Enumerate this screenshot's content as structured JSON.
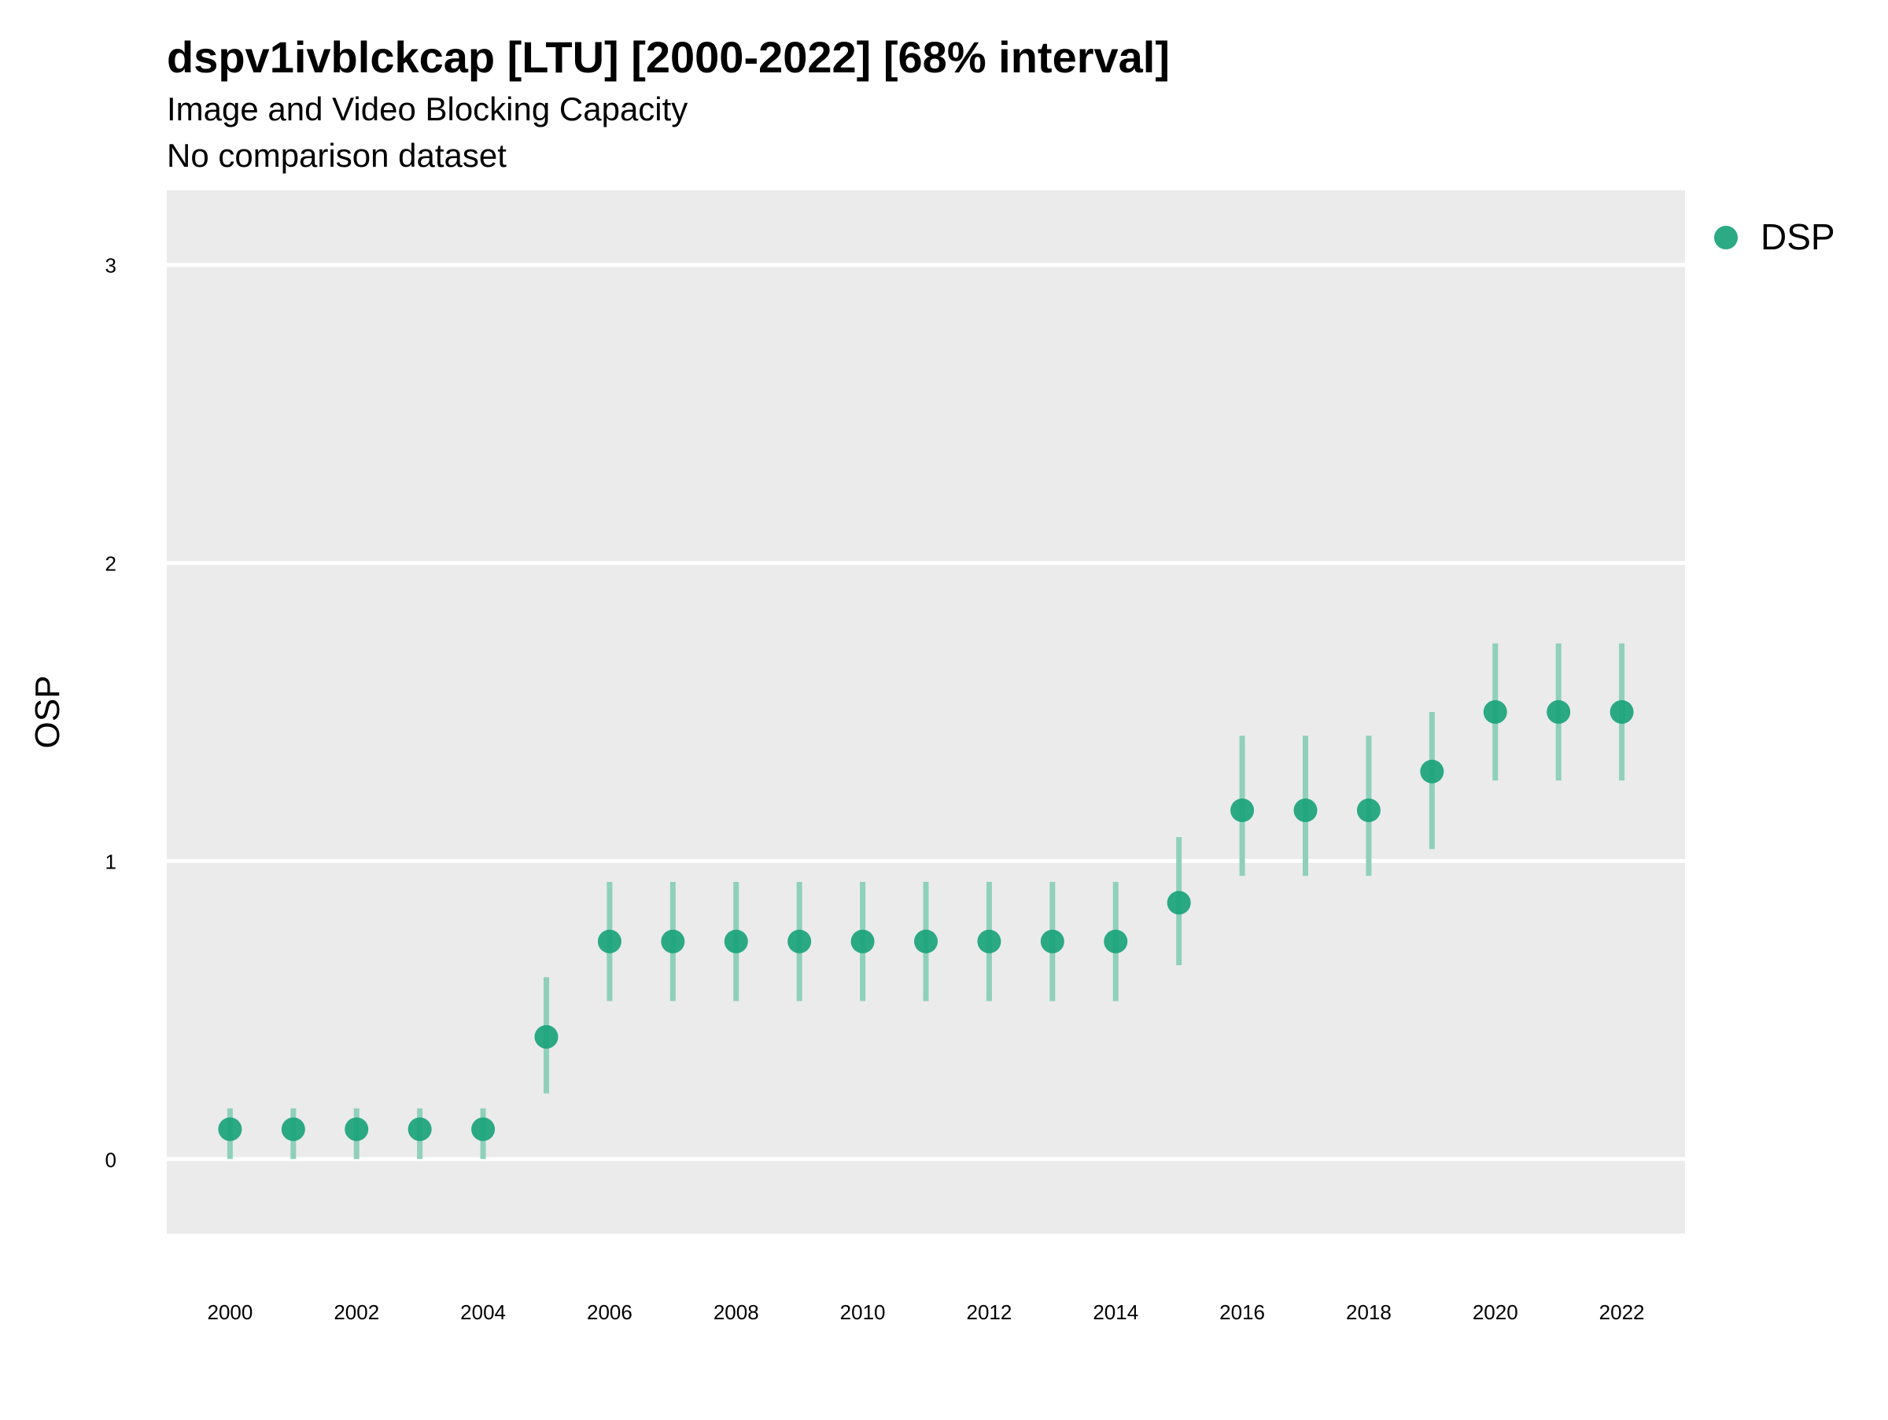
{
  "chart_data": {
    "type": "scatter",
    "title": "dspv1ivblckcap [LTU] [2000-2022] [68% interval]",
    "subtitle": "Image and Video Blocking Capacity",
    "caption": "No comparison dataset",
    "ylabel": "OSP",
    "xlabel": "",
    "xlim": [
      1999,
      2023
    ],
    "ylim": [
      -0.25,
      3.25
    ],
    "x_ticks": [
      2000,
      2002,
      2004,
      2006,
      2008,
      2010,
      2012,
      2014,
      2016,
      2018,
      2020,
      2022
    ],
    "y_ticks": [
      0,
      1,
      2,
      3
    ],
    "grid": true,
    "legend_position": "top-right",
    "series": [
      {
        "name": "DSP",
        "color": "#1aa37a",
        "interval_color": "#8fd0bb",
        "x": [
          2000,
          2001,
          2002,
          2003,
          2004,
          2005,
          2006,
          2007,
          2008,
          2009,
          2010,
          2011,
          2012,
          2013,
          2014,
          2015,
          2016,
          2017,
          2018,
          2019,
          2020,
          2021,
          2022
        ],
        "y": [
          0.1,
          0.1,
          0.1,
          0.1,
          0.1,
          0.41,
          0.73,
          0.73,
          0.73,
          0.73,
          0.73,
          0.73,
          0.73,
          0.73,
          0.73,
          0.86,
          1.17,
          1.17,
          1.17,
          1.3,
          1.5,
          1.5,
          1.5
        ],
        "lower": [
          0.0,
          0.0,
          0.0,
          0.0,
          0.0,
          0.22,
          0.53,
          0.53,
          0.53,
          0.53,
          0.53,
          0.53,
          0.53,
          0.53,
          0.53,
          0.65,
          0.95,
          0.95,
          0.95,
          1.04,
          1.27,
          1.27,
          1.27
        ],
        "upper": [
          0.17,
          0.17,
          0.17,
          0.17,
          0.17,
          0.61,
          0.93,
          0.93,
          0.93,
          0.93,
          0.93,
          0.93,
          0.93,
          0.93,
          0.93,
          1.08,
          1.42,
          1.42,
          1.42,
          1.5,
          1.73,
          1.73,
          1.73
        ]
      }
    ]
  }
}
